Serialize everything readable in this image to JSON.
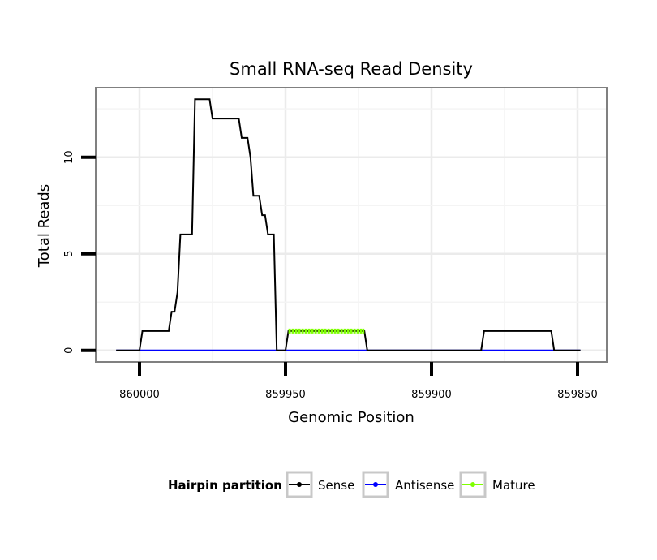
{
  "chart_data": {
    "type": "line",
    "title": "Small RNA-seq Read Density",
    "xlabel": "Genomic Position",
    "ylabel": "Total Reads",
    "x_reversed": true,
    "xlim": [
      860015,
      859840
    ],
    "ylim": [
      -0.6,
      13.6
    ],
    "x_ticks": [
      860000,
      859950,
      859900,
      859850
    ],
    "x_tick_labels": [
      "860000",
      "859950",
      "859900",
      "859850"
    ],
    "y_ticks": [
      0,
      5,
      10
    ],
    "y_tick_labels": [
      "0",
      "5",
      "10"
    ],
    "grid": true,
    "legend": {
      "position": "bottom",
      "title": "Hairpin partition",
      "entries": [
        {
          "label": "Sense",
          "color": "#000000"
        },
        {
          "label": "Antisense",
          "color": "#0000ff"
        },
        {
          "label": "Mature",
          "color": "#7fff00"
        }
      ]
    },
    "series": [
      {
        "name": "Sense",
        "color": "#000000",
        "points": [
          [
            860008,
            0
          ],
          [
            860000,
            0
          ],
          [
            859999,
            1
          ],
          [
            859990,
            1
          ],
          [
            859989,
            2
          ],
          [
            859988,
            2
          ],
          [
            859987,
            3
          ],
          [
            859986,
            6
          ],
          [
            859982,
            6
          ],
          [
            859981,
            13
          ],
          [
            859976,
            13
          ],
          [
            859975,
            12
          ],
          [
            859966,
            12
          ],
          [
            859965,
            11
          ],
          [
            859963,
            11
          ],
          [
            859962,
            10
          ],
          [
            859961,
            8
          ],
          [
            859959,
            8
          ],
          [
            859958,
            7
          ],
          [
            859957,
            7
          ],
          [
            859956,
            6
          ],
          [
            859954,
            6
          ],
          [
            859953,
            0
          ],
          [
            859950,
            0
          ],
          [
            859949,
            1
          ],
          [
            859923,
            1
          ],
          [
            859922,
            0
          ],
          [
            859883,
            0
          ],
          [
            859882,
            1
          ],
          [
            859859,
            1
          ],
          [
            859858,
            0
          ],
          [
            859849,
            0
          ]
        ]
      },
      {
        "name": "Antisense",
        "color": "#0000ff",
        "points": [
          [
            860008,
            0
          ],
          [
            859849,
            0
          ]
        ]
      },
      {
        "name": "Mature",
        "color": "#7fff00",
        "points": [
          [
            859949,
            1
          ],
          [
            859923,
            1
          ]
        ]
      }
    ]
  }
}
